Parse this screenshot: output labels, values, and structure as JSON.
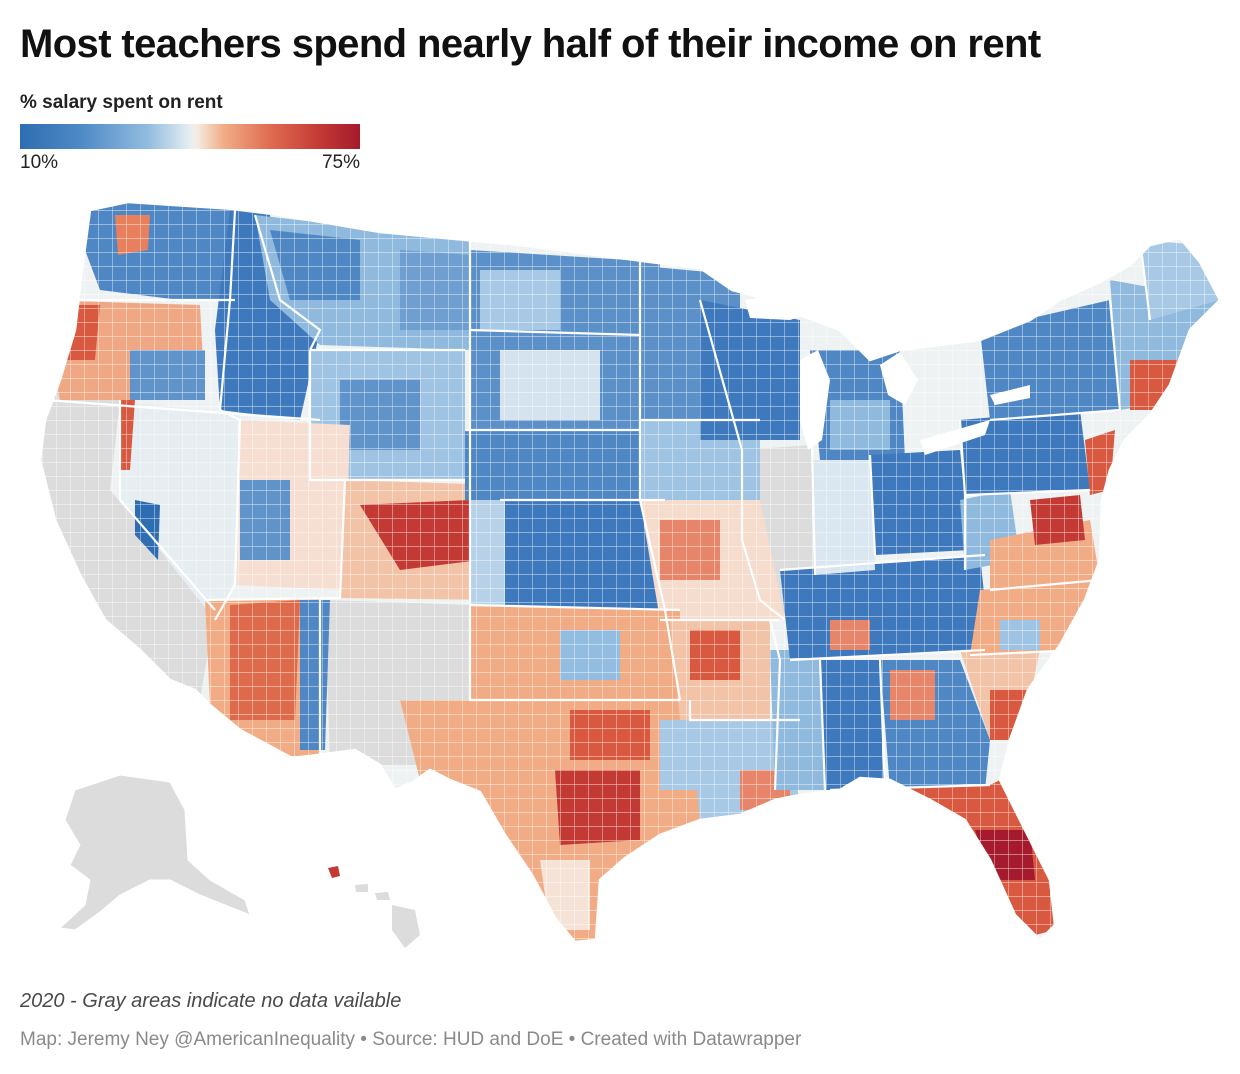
{
  "title": "Most teachers spend nearly half of their income on rent",
  "legend": {
    "title": "% salary spent on rent",
    "min_label": "10%",
    "max_label": "75%",
    "scale": {
      "min": 10,
      "max": 75,
      "unit": "%"
    },
    "colors": {
      "low": "#2f6db2",
      "mid_low": "#93bde0",
      "mid": "#f0ede6",
      "mid_high": "#df6a4f",
      "high": "#a51a2c"
    }
  },
  "no_data_color": "#dcdcdc",
  "footer": {
    "note": "2020 - Gray areas indicate no data vailable",
    "credit": "Map: Jeremy Ney @AmericanInequality • Source: HUD and DoE • Created with Datawrapper"
  }
}
